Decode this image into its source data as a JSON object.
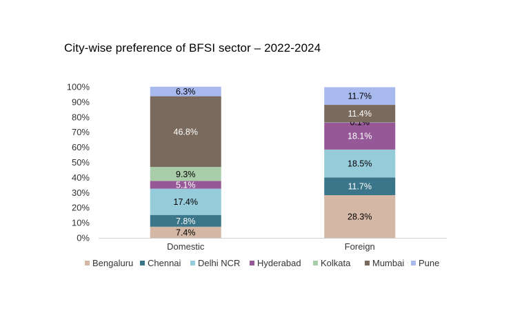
{
  "chart_data": {
    "type": "bar",
    "stacked": true,
    "title": "City-wise preference of BFSI sector – 2022-2024",
    "xlabel": "",
    "ylabel": "",
    "ylim": [
      0,
      100
    ],
    "y_ticks": [
      "0%",
      "10%",
      "20%",
      "30%",
      "40%",
      "50%",
      "60%",
      "70%",
      "80%",
      "90%",
      "100%"
    ],
    "grid": false,
    "legend_position": "bottom",
    "categories": [
      "Domestic",
      "Foreign"
    ],
    "series": [
      {
        "name": "Bengaluru",
        "color": "#d4b8a5",
        "values": [
          7.4,
          28.3
        ],
        "labels": [
          "7.4%",
          "28.3%"
        ]
      },
      {
        "name": "Chennai",
        "color": "#3a7589",
        "values": [
          7.8,
          11.7
        ],
        "labels": [
          "7.8%",
          "11.7%"
        ]
      },
      {
        "name": "Delhi NCR",
        "color": "#96cbda",
        "values": [
          17.4,
          18.5
        ],
        "labels": [
          "17.4%",
          "18.5%"
        ]
      },
      {
        "name": "Hyderabad",
        "color": "#965896",
        "values": [
          5.1,
          18.1
        ],
        "labels": [
          "5.1%",
          "18.1%"
        ]
      },
      {
        "name": "Kolkata",
        "color": "#a8cda8",
        "values": [
          9.3,
          0.1
        ],
        "labels": [
          "9.3%",
          "0.1%"
        ]
      },
      {
        "name": "Mumbai",
        "color": "#7a6a5d",
        "values": [
          46.8,
          11.4
        ],
        "labels": [
          "46.8%",
          "11.4%"
        ]
      },
      {
        "name": "Pune",
        "color": "#a8b9ee",
        "values": [
          6.3,
          11.7
        ],
        "labels": [
          "6.3%",
          "11.7%"
        ]
      }
    ]
  }
}
